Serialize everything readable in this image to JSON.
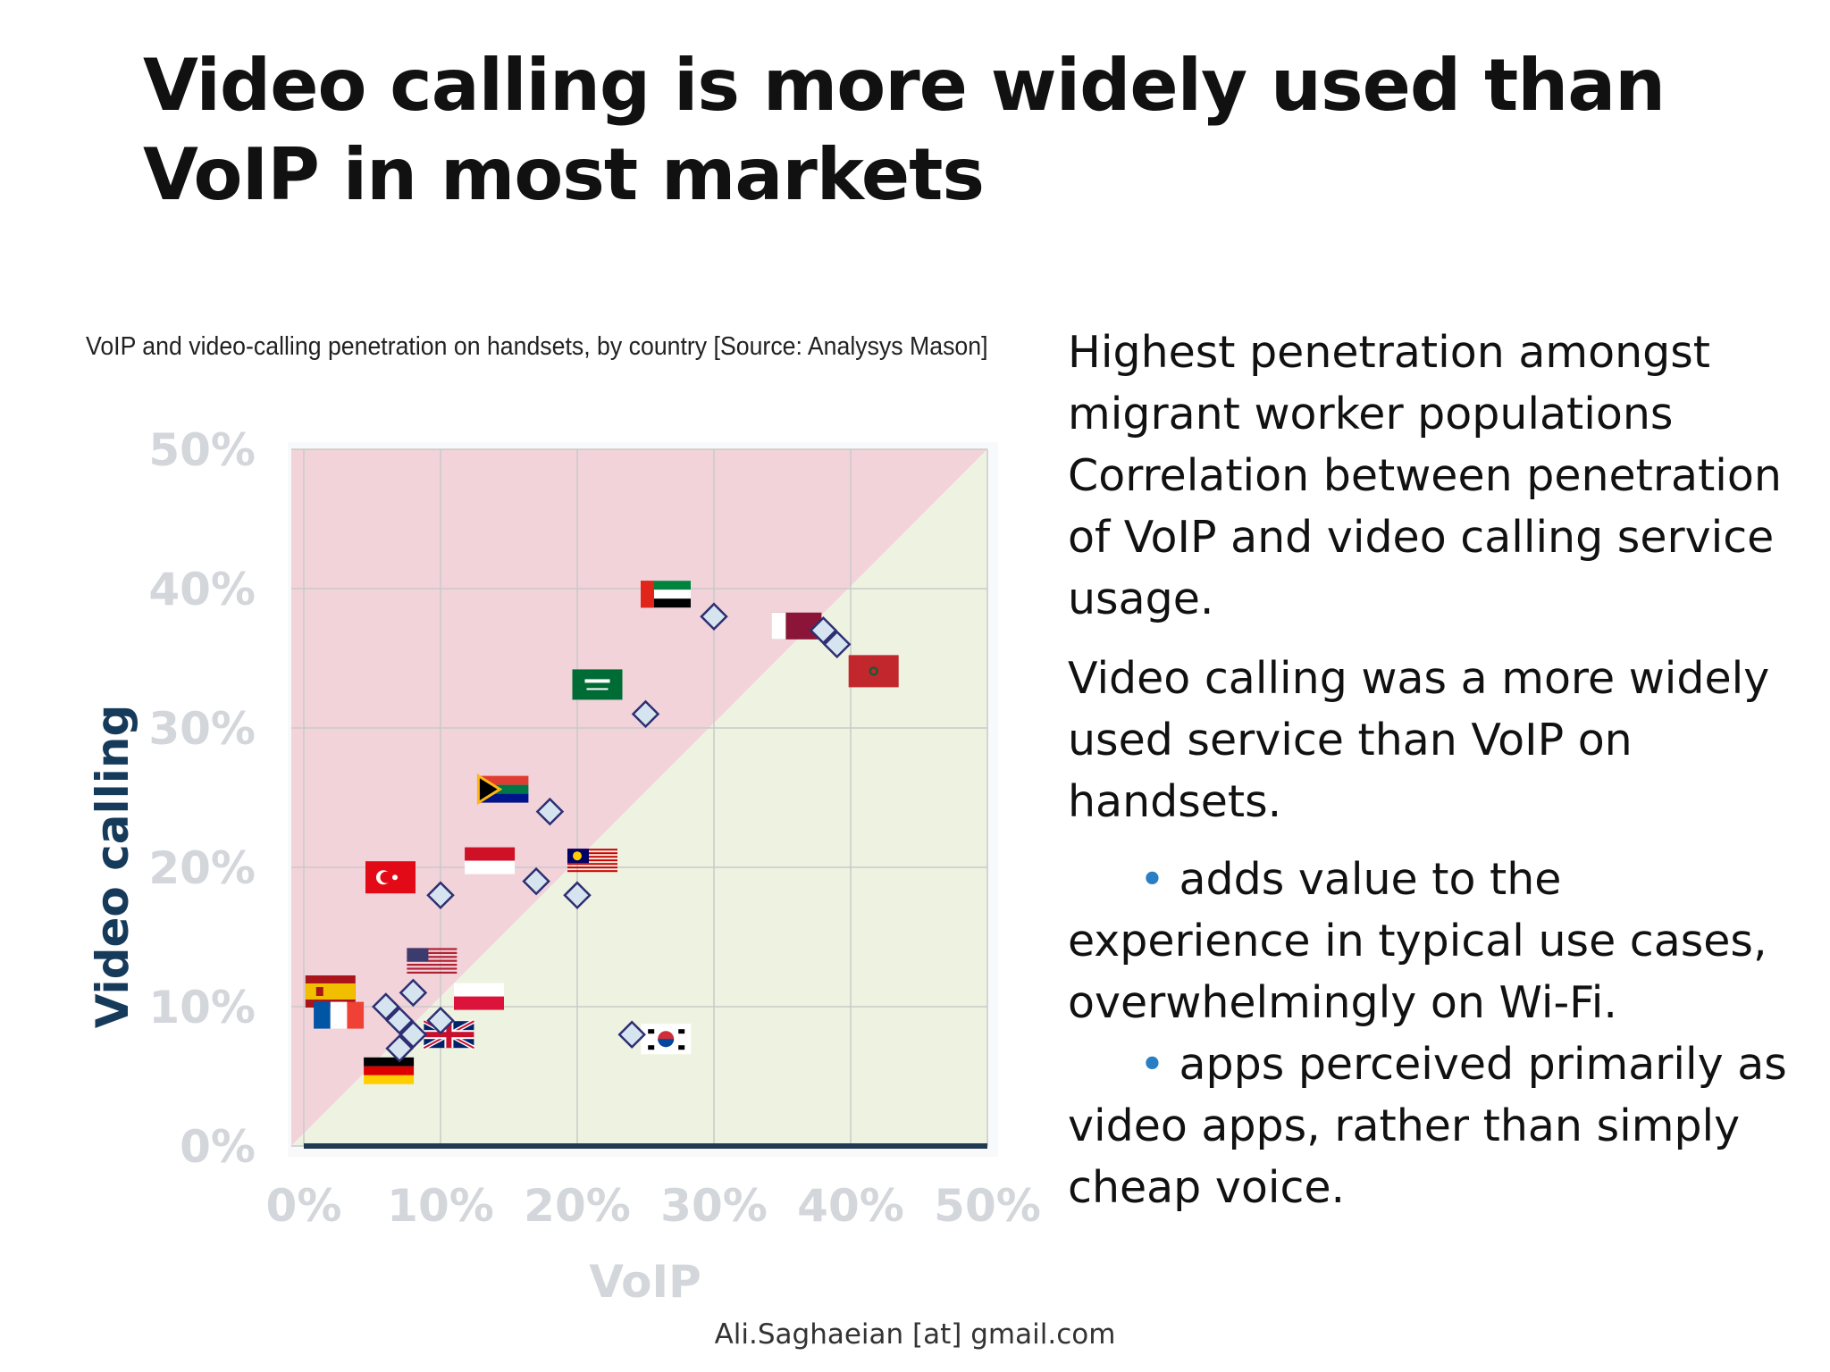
{
  "slide": {
    "title": "Video calling is more widely used than VoIP in most markets",
    "footer": "Ali.Saghaeian [at] gmail.com"
  },
  "bullets": {
    "p1_line1": "Highest penetration amongst migrant worker populations",
    "p1_line2": "Correlation between penetration of VoIP and video calling service usage.",
    "p2": "Video calling was a more widely used service than VoIP on handsets.",
    "sub1": "adds value to the experience in typical use cases, overwhelmingly on Wi-Fi.",
    "sub2": "apps perceived primarily as video apps, rather than simply cheap voice.",
    "bullet_color": "#2a7fc4"
  },
  "chart_data": {
    "type": "scatter",
    "title": "VoIP and video-calling penetration on handsets, by country [Source: Analysys Mason]",
    "xlabel": "VoIP",
    "ylabel": "Video calling",
    "xlim": [
      0,
      50
    ],
    "ylim": [
      0,
      50
    ],
    "xticks": [
      "0%",
      "10%",
      "20%",
      "30%",
      "40%",
      "50%"
    ],
    "yticks": [
      "0%",
      "10%",
      "20%",
      "30%",
      "40%",
      "50%"
    ],
    "grid": true,
    "regions": {
      "above_diagonal_color": "#f2d3da",
      "below_diagonal_color": "#eef3e1"
    },
    "marker_color": "#d6e4f0",
    "marker_edge_color": "#2d2f72",
    "points": [
      {
        "country": "uae",
        "x": 30,
        "y": 38
      },
      {
        "country": "qatar",
        "x": 38,
        "y": 37
      },
      {
        "country": "morocco",
        "x": 39,
        "y": 36
      },
      {
        "country": "saudi-arabia",
        "x": 25,
        "y": 31
      },
      {
        "country": "south-africa",
        "x": 18,
        "y": 24
      },
      {
        "country": "turkey",
        "x": 10,
        "y": 18
      },
      {
        "country": "indonesia",
        "x": 17,
        "y": 19
      },
      {
        "country": "malaysia",
        "x": 20,
        "y": 18
      },
      {
        "country": "usa",
        "x": 8,
        "y": 11
      },
      {
        "country": "spain",
        "x": 6,
        "y": 10
      },
      {
        "country": "poland",
        "x": 10,
        "y": 9
      },
      {
        "country": "france",
        "x": 7,
        "y": 9
      },
      {
        "country": "uk",
        "x": 8,
        "y": 8
      },
      {
        "country": "germany",
        "x": 7,
        "y": 7
      },
      {
        "country": "south-korea",
        "x": 24,
        "y": 8
      }
    ]
  }
}
